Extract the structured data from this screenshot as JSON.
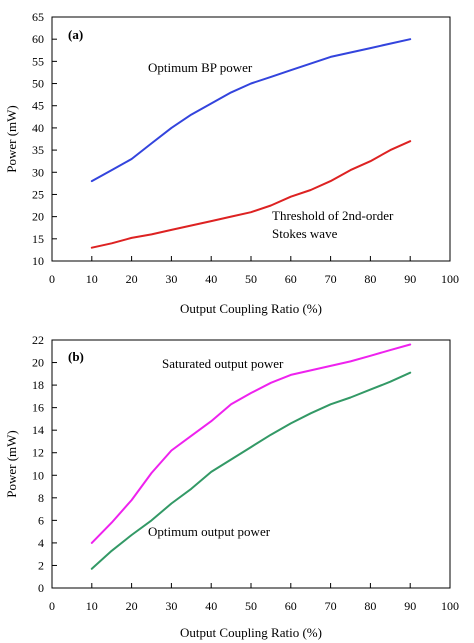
{
  "chart_data": [
    {
      "type": "line",
      "panel_label": "(a)",
      "xlabel": "Output Coupling Ratio (%)",
      "ylabel": "Power (mW)",
      "xlim": [
        0,
        100
      ],
      "ylim": [
        10,
        65
      ],
      "xticks": [
        0,
        10,
        20,
        30,
        40,
        50,
        60,
        70,
        80,
        90,
        100
      ],
      "yticks": [
        10,
        15,
        20,
        25,
        30,
        35,
        40,
        45,
        50,
        55,
        60,
        65
      ],
      "grid": false,
      "series": [
        {
          "name": "Optimum BP power",
          "color": "#3344dd",
          "x": [
            10,
            15,
            20,
            25,
            30,
            35,
            40,
            45,
            50,
            55,
            60,
            65,
            70,
            75,
            80,
            85,
            90
          ],
          "y": [
            28,
            30.5,
            33,
            36.5,
            40,
            43,
            45.5,
            48,
            50,
            51.5,
            53,
            54.5,
            56,
            57,
            58,
            59,
            60
          ]
        },
        {
          "name": "Threshold of 2nd-order Stokes wave",
          "color": "#dd2222",
          "x": [
            10,
            15,
            20,
            25,
            30,
            35,
            40,
            45,
            50,
            55,
            60,
            65,
            70,
            75,
            80,
            85,
            90
          ],
          "y": [
            13,
            14,
            15.2,
            16,
            17,
            18,
            19,
            20,
            21,
            22.5,
            24.5,
            26,
            28,
            30.5,
            32.5,
            35,
            37
          ]
        }
      ],
      "annotations": [
        "Optimum BP power",
        "Threshold of 2nd-order",
        "Stokes wave"
      ]
    },
    {
      "type": "line",
      "panel_label": "(b)",
      "xlabel": "Output Coupling Ratio (%)",
      "ylabel": "Power (mW)",
      "xlim": [
        0,
        100
      ],
      "ylim": [
        0,
        22
      ],
      "xticks": [
        0,
        10,
        20,
        30,
        40,
        50,
        60,
        70,
        80,
        90,
        100
      ],
      "yticks": [
        0,
        2,
        4,
        6,
        8,
        10,
        12,
        14,
        16,
        18,
        20,
        22
      ],
      "grid": false,
      "series": [
        {
          "name": "Saturated output power",
          "color": "#ee22ee",
          "x": [
            10,
            15,
            20,
            25,
            30,
            35,
            40,
            45,
            50,
            55,
            60,
            65,
            70,
            75,
            80,
            85,
            90
          ],
          "y": [
            4,
            5.8,
            7.8,
            10.2,
            12.2,
            13.5,
            14.8,
            16.3,
            17.3,
            18.2,
            18.9,
            19.3,
            19.7,
            20.1,
            20.6,
            21.1,
            21.6
          ]
        },
        {
          "name": "Optimum output power",
          "color": "#339966",
          "x": [
            10,
            15,
            20,
            25,
            30,
            35,
            40,
            45,
            50,
            55,
            60,
            65,
            70,
            75,
            80,
            85,
            90
          ],
          "y": [
            1.7,
            3.3,
            4.7,
            6,
            7.5,
            8.8,
            10.3,
            11.4,
            12.5,
            13.6,
            14.6,
            15.5,
            16.3,
            16.9,
            17.6,
            18.3,
            19.1
          ]
        }
      ],
      "annotations": [
        "Saturated output power",
        "Optimum output power"
      ]
    }
  ]
}
